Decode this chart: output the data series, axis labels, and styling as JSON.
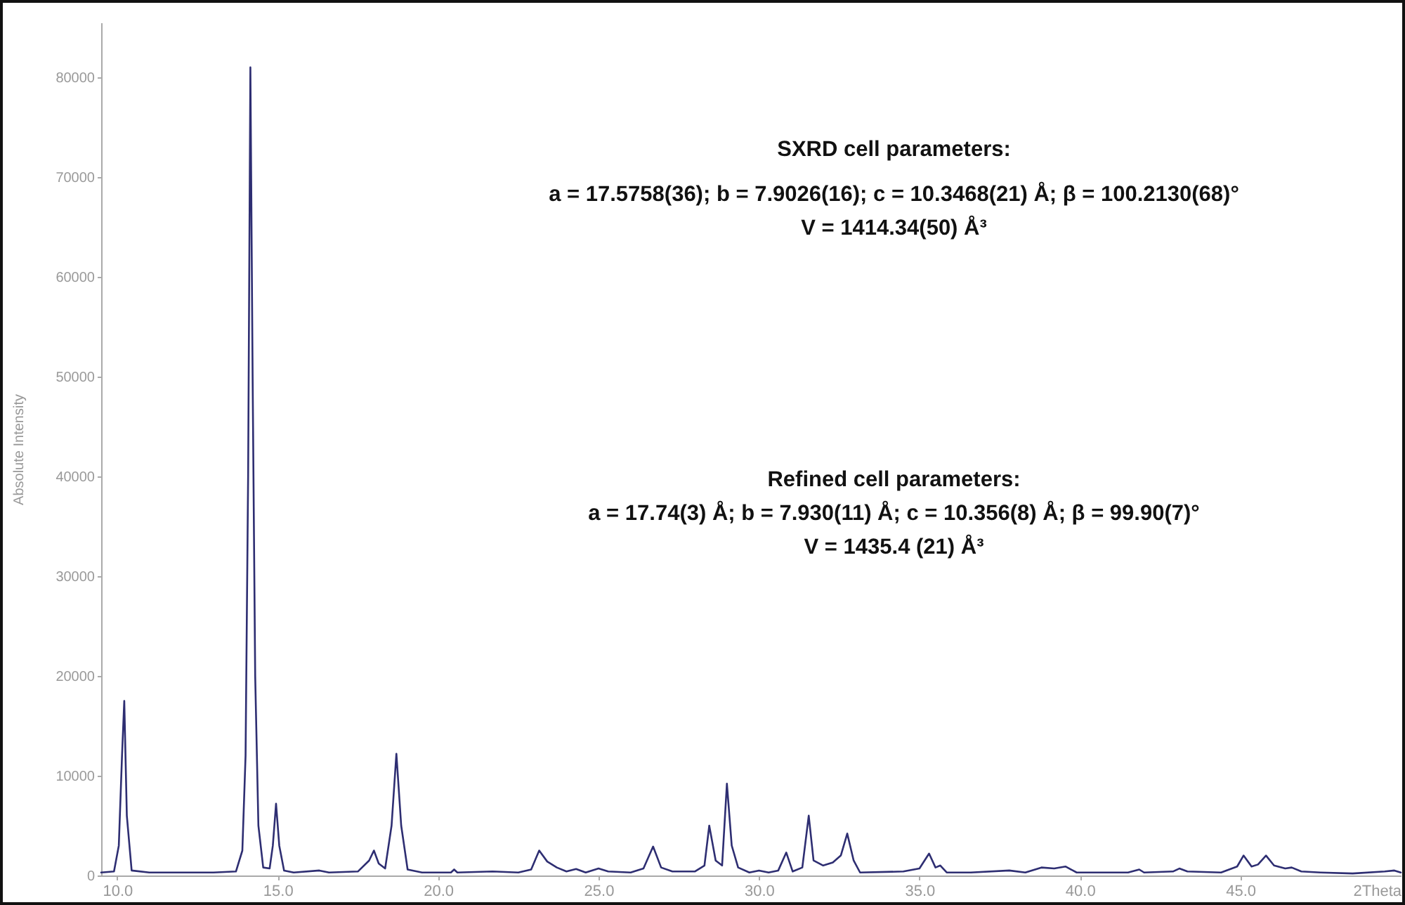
{
  "chart_data": {
    "type": "line",
    "xlabel": "2Theta",
    "ylabel": "Absolute Intensity",
    "annotations": [
      "SXRD cell parameters:",
      "a = 17.5758(36); b = 7.9026(16); c = 10.3468(21) Å; β = 100.2130(68)°",
      "V = 1414.34(50) Å³",
      "Refined cell parameters:",
      "a = 17.74(3) Å; b = 7.930(11) Å; c = 10.356(8) Å; β = 99.90(7)°",
      "V = 1435.4 (21) Å³"
    ],
    "x": [
      9.5,
      9.9,
      10.05,
      10.15,
      10.22,
      10.3,
      10.45,
      11,
      12,
      13,
      13.7,
      13.9,
      14.0,
      14.08,
      14.15,
      14.22,
      14.3,
      14.4,
      14.55,
      14.75,
      14.85,
      14.95,
      15.05,
      15.2,
      15.5,
      16.3,
      16.6,
      17.5,
      17.85,
      18.0,
      18.15,
      18.35,
      18.55,
      18.7,
      18.85,
      19.05,
      19.5,
      20.4,
      20.5,
      20.6,
      21.7,
      22.5,
      22.9,
      23.15,
      23.4,
      23.7,
      24.0,
      24.3,
      24.6,
      25.0,
      25.3,
      26.0,
      26.4,
      26.7,
      26.95,
      27.3,
      28.0,
      28.3,
      28.45,
      28.65,
      28.85,
      29.0,
      29.15,
      29.35,
      29.7,
      30.0,
      30.3,
      30.6,
      30.85,
      31.05,
      31.35,
      31.55,
      31.7,
      32.0,
      32.3,
      32.55,
      32.75,
      32.95,
      33.15,
      34.5,
      35.0,
      35.3,
      35.5,
      35.65,
      35.85,
      36.6,
      37.8,
      38.3,
      38.8,
      39.2,
      39.55,
      39.9,
      41.5,
      41.85,
      42.0,
      42.9,
      43.1,
      43.35,
      44.4,
      44.9,
      45.1,
      45.35,
      45.55,
      45.8,
      46.05,
      46.4,
      46.6,
      46.9,
      47.5,
      48.5,
      49.5,
      49.8,
      50.0
    ],
    "series": [
      {
        "color": "#2e2e72",
        "values": [
          300,
          400,
          3000,
          12000,
          17500,
          6000,
          500,
          300,
          300,
          300,
          400,
          2500,
          12000,
          40000,
          81000,
          50000,
          20000,
          5000,
          800,
          700,
          3000,
          7200,
          3000,
          500,
          300,
          500,
          300,
          400,
          1500,
          2500,
          1200,
          700,
          5000,
          12200,
          5000,
          600,
          300,
          300,
          600,
          300,
          400,
          300,
          600,
          2500,
          1400,
          800,
          400,
          650,
          300,
          700,
          400,
          300,
          700,
          2900,
          800,
          400,
          400,
          1000,
          5000,
          1500,
          1000,
          9200,
          3000,
          800,
          300,
          500,
          300,
          500,
          2300,
          400,
          800,
          6000,
          1500,
          1000,
          1300,
          2000,
          4200,
          1500,
          300,
          400,
          700,
          2200,
          800,
          1000,
          300,
          300,
          500,
          300,
          800,
          700,
          900,
          300,
          300,
          600,
          300,
          400,
          700,
          400,
          300,
          900,
          2000,
          900,
          1100,
          2000,
          1000,
          700,
          800,
          400,
          300,
          200,
          400,
          500,
          300
        ]
      }
    ],
    "xlim": [
      9.5,
      50
    ],
    "xticks": [
      {
        "value": 10,
        "label": "10.0"
      },
      {
        "value": 15,
        "label": "15.0"
      },
      {
        "value": 20,
        "label": "20.0"
      },
      {
        "value": 25,
        "label": "25.0"
      },
      {
        "value": 30,
        "label": "30.0"
      },
      {
        "value": 35,
        "label": "35.0"
      },
      {
        "value": 40,
        "label": "40.0"
      },
      {
        "value": 45,
        "label": "45.0"
      }
    ],
    "ylim": [
      0,
      85500
    ],
    "yticks": [
      0,
      10000,
      20000,
      30000,
      40000,
      50000,
      60000,
      70000,
      80000
    ],
    "grid": false
  }
}
